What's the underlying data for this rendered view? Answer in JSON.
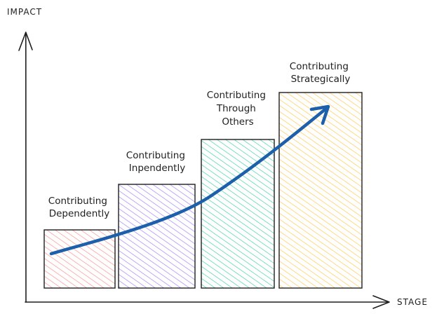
{
  "axes": {
    "y_label": "IMPACT",
    "x_label": "STAGE"
  },
  "stages": [
    {
      "lines": [
        "Contributing",
        "Dependently"
      ],
      "color": "#ff8a8a",
      "level": 1
    },
    {
      "lines": [
        "Contributing",
        "Inpendently"
      ],
      "color": "#9d7bff",
      "level": 2
    },
    {
      "lines": [
        "Contributing",
        "Through",
        "Others"
      ],
      "color": "#38cfa1",
      "level": 3
    },
    {
      "lines": [
        "Contributing",
        "Strategically"
      ],
      "color": "#ffc74a",
      "level": 4
    }
  ],
  "trend_arrow": {
    "color": "#1c5faa"
  },
  "axis_color": "#1e1e1e"
}
